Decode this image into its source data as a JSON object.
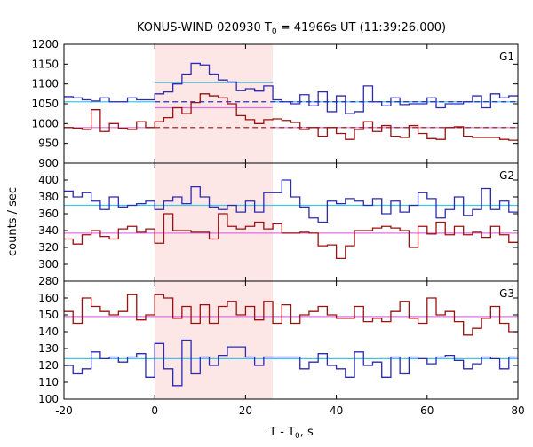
{
  "chart_data": {
    "type": "line",
    "title_parts": [
      "KONUS-WIND 020930 T",
      "0",
      " = 41966s UT (11:39:26.000)"
    ],
    "ylabel": "counts / sec",
    "xlabel_parts": [
      "T - T",
      "0",
      ", s"
    ],
    "xlim": [
      -20,
      80
    ],
    "xticks": [
      -20,
      0,
      20,
      40,
      60,
      80
    ],
    "highlight": {
      "x0": 0,
      "x1": 26,
      "color": "#fde6e6"
    },
    "colors": {
      "blue": "#2b2bb0",
      "red": "#9b1010",
      "cyan": "#44c4e8",
      "pink": "#e070e0"
    },
    "x": [
      -20,
      -18,
      -16,
      -14,
      -12,
      -10,
      -8,
      -6,
      -4,
      -2,
      0,
      2,
      4,
      6,
      8,
      10,
      12,
      14,
      16,
      18,
      20,
      22,
      24,
      26,
      28,
      30,
      32,
      34,
      36,
      38,
      40,
      42,
      44,
      46,
      48,
      50,
      52,
      54,
      56,
      58,
      60,
      62,
      64,
      66,
      68,
      70,
      72,
      74,
      76,
      78
    ],
    "panels": [
      {
        "label": "G1",
        "ylim": [
          900,
          1200
        ],
        "yticks": [
          900,
          950,
          1000,
          1050,
          1100,
          1150,
          1200
        ],
        "tick_labels": [
          "900",
          "950",
          "1000",
          "1050",
          "1100",
          "1150",
          "1200"
        ],
        "series": [
          {
            "color": "blue",
            "values": [
              1068,
              1065,
              1060,
              1057,
              1065,
              1055,
              1055,
              1065,
              1060,
              1060,
              1075,
              1080,
              1100,
              1125,
              1152,
              1148,
              1125,
              1110,
              1105,
              1083,
              1088,
              1082,
              1095,
              1060,
              1055,
              1050,
              1073,
              1045,
              1080,
              1030,
              1070,
              1025,
              1030,
              1095,
              1055,
              1045,
              1065,
              1048,
              1050,
              1050,
              1065,
              1040,
              1050,
              1050,
              1055,
              1070,
              1040,
              1075,
              1065,
              1070
            ]
          },
          {
            "color": "red",
            "values": [
              990,
              988,
              985,
              1035,
              980,
              1000,
              988,
              985,
              1005,
              990,
              1005,
              1015,
              1040,
              1025,
              1053,
              1075,
              1070,
              1065,
              1050,
              1020,
              1010,
              1000,
              1010,
              1012,
              1008,
              1003,
              985,
              990,
              968,
              990,
              975,
              960,
              985,
              1005,
              980,
              995,
              968,
              965,
              995,
              975,
              962,
              960,
              990,
              992,
              968,
              965,
              965,
              965,
              960,
              958
            ]
          }
        ],
        "fit": [
          {
            "color": "cyan",
            "style": "solid",
            "segments": [
              [
                -20,
                0,
                1055
              ],
              [
                0,
                26,
                1103
              ],
              [
                26,
                80,
                1055
              ]
            ]
          },
          {
            "color": "blue",
            "style": "dash",
            "segments": [
              [
                0,
                80,
                1055
              ]
            ]
          },
          {
            "color": "pink",
            "style": "solid",
            "segments": [
              [
                -20,
                0,
                990
              ],
              [
                0,
                26,
                1040
              ],
              [
                26,
                80,
                990
              ]
            ]
          },
          {
            "color": "red",
            "style": "dash",
            "segments": [
              [
                0,
                80,
                990
              ]
            ]
          }
        ]
      },
      {
        "label": "G2",
        "ylim": [
          280,
          420
        ],
        "yticks": [
          280,
          300,
          320,
          340,
          360,
          380,
          400,
          420
        ],
        "tick_labels": [
          "280",
          "300",
          "320",
          "340",
          "360",
          "380",
          "400",
          ""
        ],
        "series": [
          {
            "color": "blue",
            "values": [
              387,
              380,
              385,
              375,
              365,
              380,
              368,
              370,
              372,
              375,
              365,
              375,
              380,
              372,
              392,
              380,
              368,
              365,
              370,
              362,
              375,
              362,
              385,
              385,
              400,
              380,
              368,
              355,
              350,
              375,
              372,
              378,
              375,
              370,
              378,
              360,
              375,
              362,
              370,
              385,
              378,
              355,
              365,
              380,
              358,
              365,
              390,
              365,
              375,
              362
            ]
          },
          {
            "color": "red",
            "values": [
              330,
              324,
              335,
              340,
              333,
              330,
              342,
              345,
              338,
              342,
              325,
              360,
              340,
              340,
              338,
              338,
              330,
              360,
              345,
              342,
              345,
              350,
              342,
              348,
              337,
              337,
              338,
              337,
              322,
              323,
              307,
              322,
              340,
              340,
              343,
              345,
              343,
              340,
              320,
              345,
              336,
              350,
              335,
              345,
              335,
              338,
              332,
              345,
              335,
              326
            ]
          }
        ],
        "fit": [
          {
            "color": "cyan",
            "style": "solid",
            "segments": [
              [
                -20,
                80,
                370
              ]
            ]
          },
          {
            "color": "pink",
            "style": "solid",
            "segments": [
              [
                -20,
                80,
                337
              ]
            ]
          }
        ]
      },
      {
        "label": "G3",
        "ylim": [
          100,
          170
        ],
        "yticks": [
          100,
          110,
          120,
          130,
          140,
          150,
          160,
          170
        ],
        "tick_labels": [
          "100",
          "110",
          "120",
          "130",
          "140",
          "150",
          "160",
          ""
        ],
        "series": [
          {
            "color": "blue",
            "values": [
              120,
              115,
              118,
              128,
              124,
              125,
              122,
              125,
              127,
              113,
              133,
              118,
              108,
              135,
              115,
              125,
              120,
              126,
              131,
              131,
              125,
              120,
              125,
              125,
              125,
              125,
              118,
              122,
              127,
              120,
              118,
              113,
              128,
              120,
              122,
              113,
              125,
              115,
              125,
              124,
              121,
              125,
              126,
              123,
              118,
              121,
              125,
              124,
              118,
              125
            ]
          },
          {
            "color": "red",
            "values": [
              152,
              145,
              160,
              155,
              152,
              150,
              152,
              162,
              147,
              150,
              162,
              160,
              148,
              155,
              145,
              156,
              145,
              155,
              158,
              150,
              155,
              147,
              158,
              145,
              156,
              145,
              150,
              152,
              155,
              150,
              148,
              148,
              155,
              146,
              148,
              146,
              152,
              158,
              148,
              145,
              160,
              150,
              152,
              146,
              138,
              142,
              148,
              155,
              145,
              140
            ]
          }
        ],
        "fit": [
          {
            "color": "cyan",
            "style": "solid",
            "segments": [
              [
                -20,
                80,
                124
              ]
            ]
          },
          {
            "color": "pink",
            "style": "solid",
            "segments": [
              [
                -20,
                80,
                149
              ]
            ]
          }
        ]
      }
    ]
  }
}
